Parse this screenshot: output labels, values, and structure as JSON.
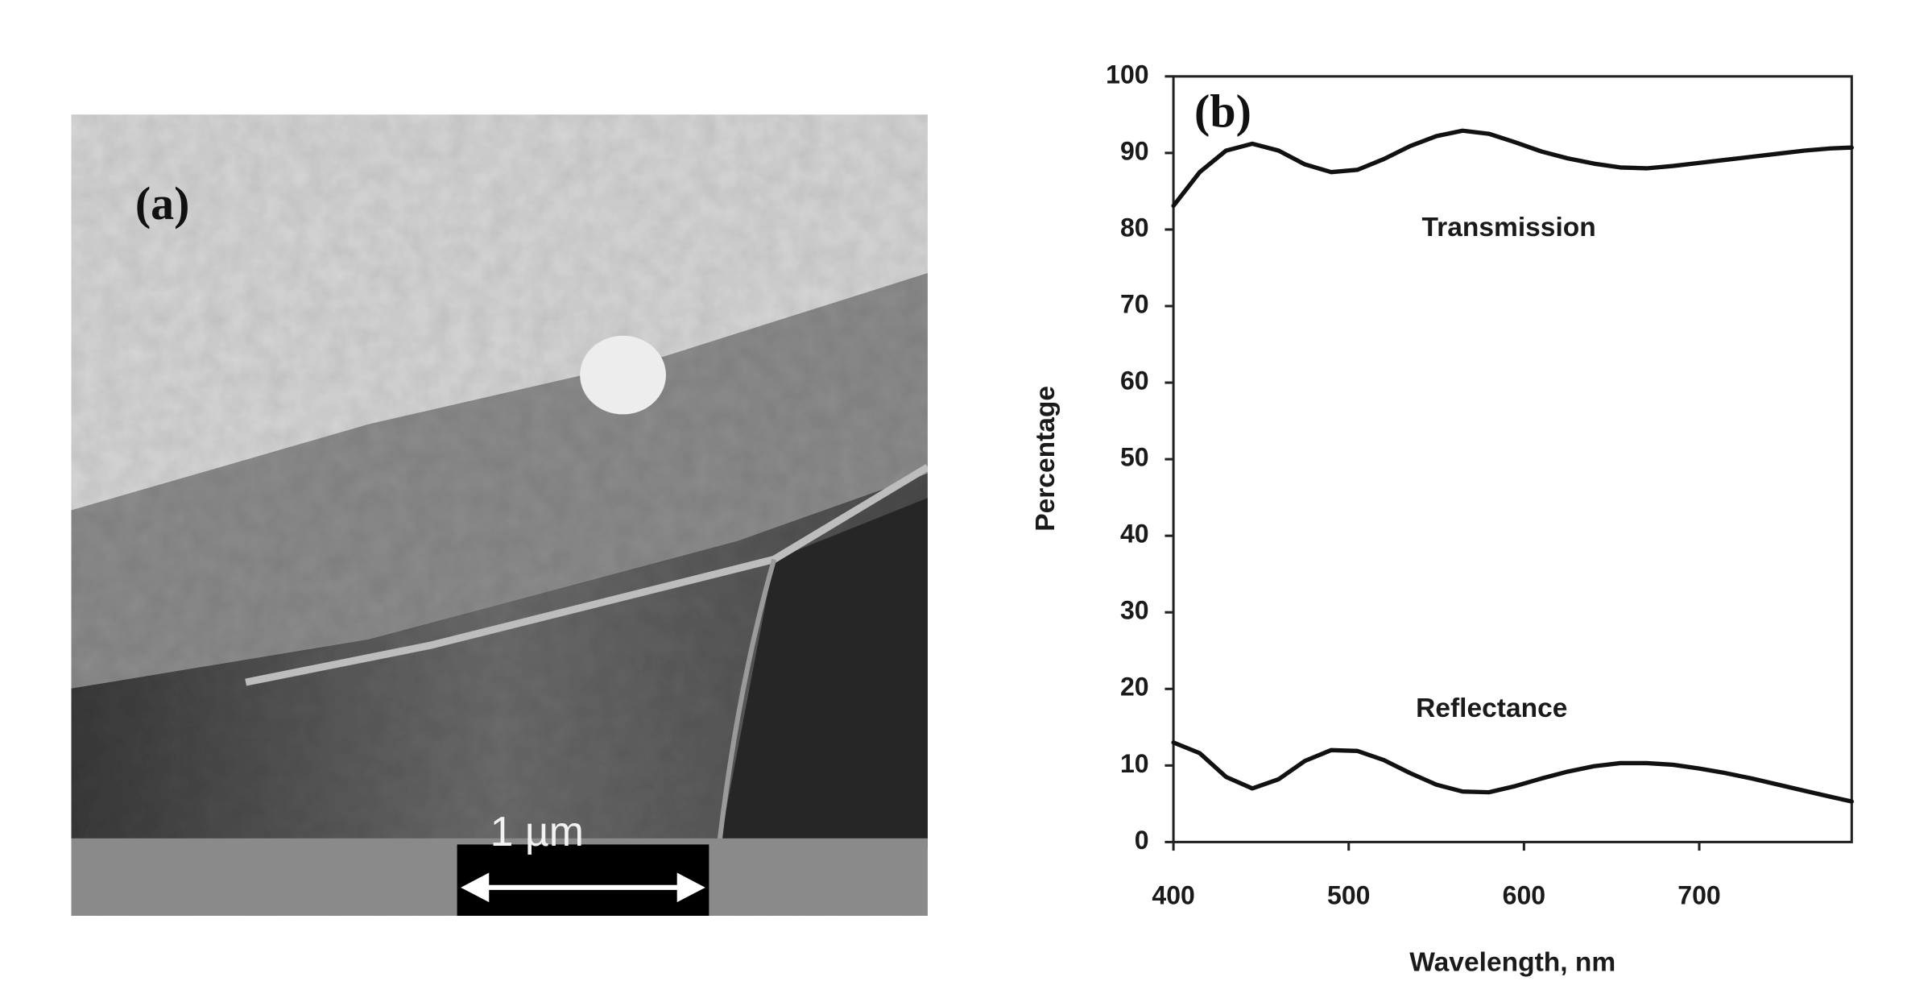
{
  "panel_a": {
    "label": "(a)",
    "scale_bar": "1 µm"
  },
  "chart_data": {
    "type": "line",
    "panel_label": "(b)",
    "x_label": "Wavelength, nm",
    "y_label": "Percentage",
    "x": [
      400,
      415,
      430,
      445,
      460,
      475,
      490,
      505,
      520,
      535,
      550,
      565,
      580,
      595,
      610,
      625,
      640,
      655,
      670,
      685,
      700,
      715,
      730,
      745,
      760,
      775,
      787
    ],
    "series": [
      {
        "name": "Transmission",
        "color": "#111111",
        "values": [
          83.1,
          87.5,
          90.3,
          91.2,
          90.3,
          88.5,
          87.5,
          87.8,
          89.2,
          90.9,
          92.2,
          92.9,
          92.5,
          91.4,
          90.2,
          89.3,
          88.6,
          88.1,
          88.0,
          88.3,
          88.7,
          89.1,
          89.5,
          89.9,
          90.3,
          90.6,
          90.7
        ]
      },
      {
        "name": "Reflectance",
        "color": "#111111",
        "values": [
          13.0,
          11.6,
          8.5,
          7.0,
          8.2,
          10.6,
          12.0,
          11.9,
          10.7,
          9.0,
          7.5,
          6.6,
          6.5,
          7.3,
          8.3,
          9.2,
          9.9,
          10.3,
          10.3,
          10.1,
          9.6,
          9.0,
          8.3,
          7.5,
          6.7,
          5.9,
          5.3
        ]
      }
    ],
    "xlim": [
      400,
      787
    ],
    "ylim": [
      0,
      100
    ],
    "xticks": [
      400,
      500,
      600,
      700
    ],
    "yticks": [
      0,
      10,
      20,
      30,
      40,
      50,
      60,
      70,
      80,
      90,
      100
    ],
    "grid": false
  }
}
